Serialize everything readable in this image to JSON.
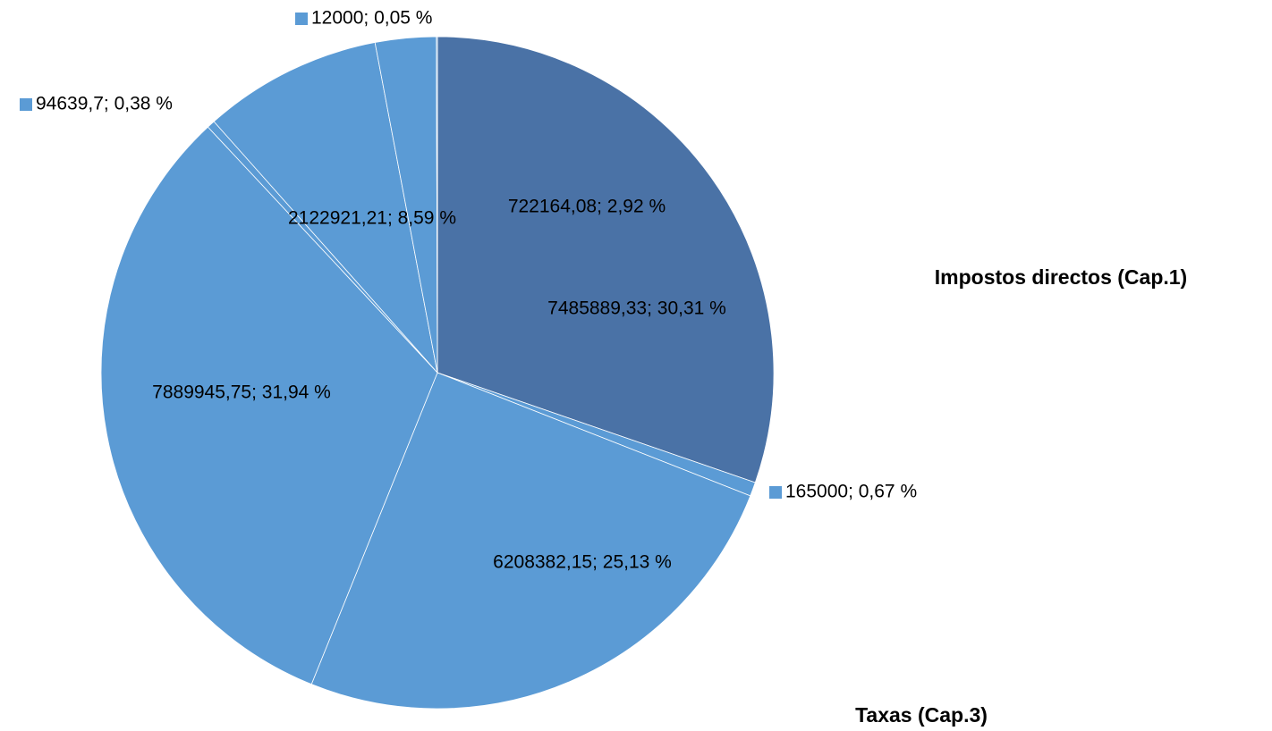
{
  "chart_data": {
    "type": "pie",
    "values": [
      7485889.33,
      165000,
      6208382.15,
      7889945.75,
      94639.7,
      2122921.21,
      722164.08,
      12000
    ],
    "value_labels": [
      "7485889,33; 30,31 %",
      "165000; 0,67 %",
      "6208382,15; 25,13 %",
      "7889945,75; 31,94 %",
      "94639,7; 0,38 %",
      "2122921,21; 8,59 %",
      "722164,08; 2,92 %",
      "12000; 0,05 %"
    ],
    "colors": [
      "#4a72a6",
      "#5b9bd5",
      "#5b9bd5",
      "#5b9bd5",
      "#5b9bd5",
      "#5b9bd5",
      "#5b9bd5",
      "#5b9bd5"
    ],
    "annotations": [
      "Impostos directos (Cap.1)",
      "Taxas (Cap.3)"
    ]
  }
}
